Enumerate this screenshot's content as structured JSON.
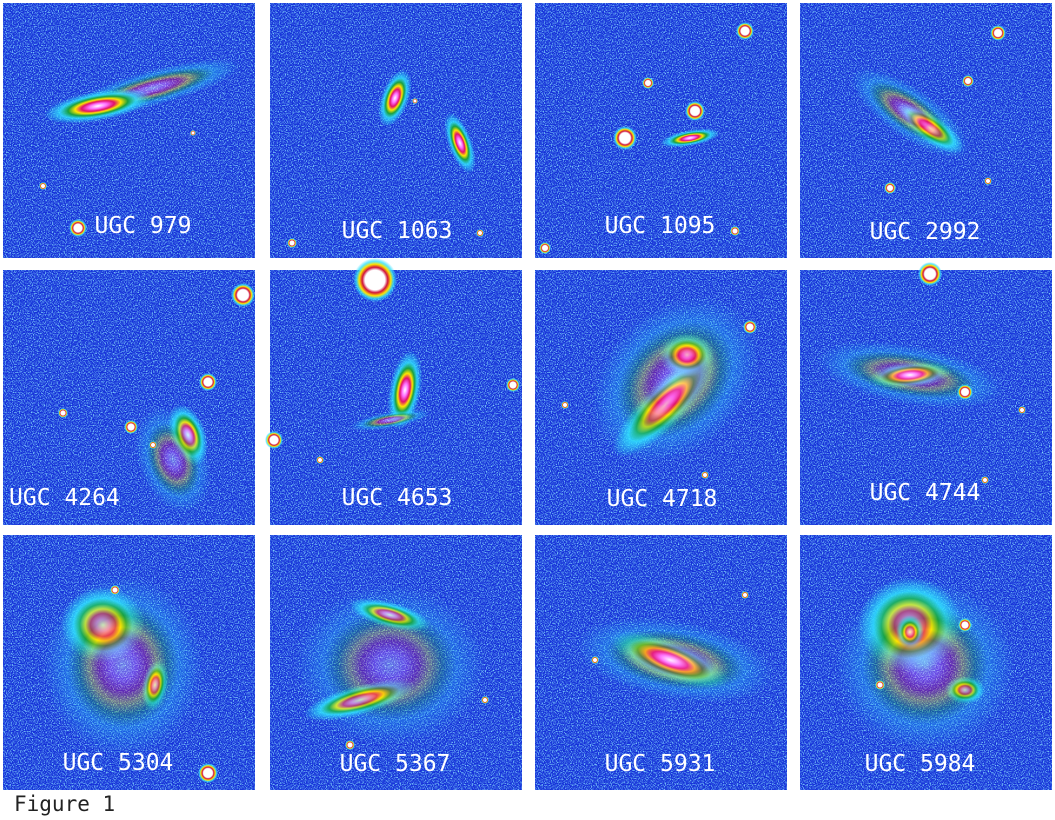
{
  "panels": [
    {
      "label": "UGC 979"
    },
    {
      "label": "UGC 1063"
    },
    {
      "label": "UGC 1095"
    },
    {
      "label": "UGC 2992"
    },
    {
      "label": "UGC 4264"
    },
    {
      "label": "UGC 4653"
    },
    {
      "label": "UGC 4718"
    },
    {
      "label": "UGC 4744"
    },
    {
      "label": "UGC 5304"
    },
    {
      "label": "UGC 5367"
    },
    {
      "label": "UGC 5931"
    },
    {
      "label": "UGC 5984"
    }
  ],
  "caption": "Figure 1"
}
